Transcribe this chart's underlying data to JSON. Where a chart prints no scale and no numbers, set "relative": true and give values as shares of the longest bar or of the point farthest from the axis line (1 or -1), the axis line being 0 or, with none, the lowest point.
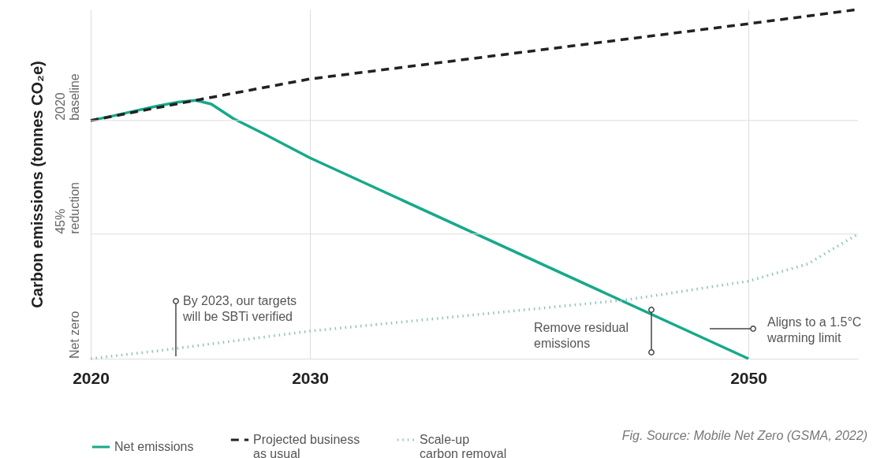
{
  "chart_data": {
    "type": "line",
    "ylabel": "Carbon emissions (tonnes CO₂e)",
    "relative": true,
    "xlim": [
      2020,
      2055
    ],
    "xticks": [
      2020,
      2030,
      2050
    ],
    "grid": "x",
    "legend": "bottom",
    "ref_lines": [
      {
        "axis": "y",
        "value": 0.682,
        "label": "2020\nbaseline",
        "color": "#dddddd"
      },
      {
        "axis": "y",
        "value": 0.357,
        "label": "45%\nreduction",
        "color": "#dddddd"
      }
    ],
    "series": [
      {
        "name": "Net emissions",
        "color": "#16a98a",
        "line_style": "solid",
        "x": [
          2020,
          2021,
          2022,
          2023,
          2024,
          2024.8,
          2025.5,
          2026.5,
          2027.9,
          2030,
          2050
        ],
        "values": [
          0.682,
          0.695,
          0.709,
          0.723,
          0.735,
          0.74,
          0.729,
          0.688,
          0.644,
          0.575,
          0
        ]
      },
      {
        "name": "Projected business\nas usual",
        "color": "#222222",
        "line_style": "dashed",
        "x": [
          2020,
          2024.8,
          2030,
          2050,
          2055
        ],
        "values": [
          0.682,
          0.74,
          0.801,
          0.959,
          1
        ]
      },
      {
        "name": "Scale-up\ncarbon removal",
        "color": "#8fc4b9",
        "line_style": "dotted",
        "x": [
          2020,
          2023,
          2030,
          2044.5,
          2050,
          2052.7,
          2055
        ],
        "values": [
          0,
          0.022,
          0.079,
          0.169,
          0.222,
          0.271,
          0.357
        ]
      }
    ],
    "annotations": [
      "By 2023, our targets\nwill be SBTi verified",
      "Remove residual\nemissions",
      "Aligns to a 1.5°C\nwarming limit",
      "Fig. Source: Mobile Net Zero (GSMA, 2022)",
      "Net zero"
    ]
  }
}
